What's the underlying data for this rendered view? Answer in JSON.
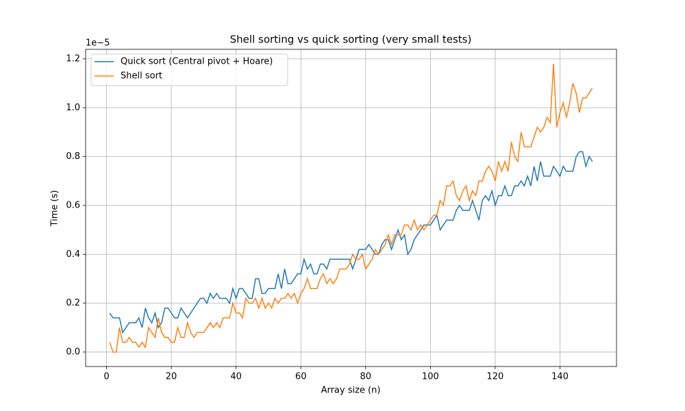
{
  "chart_data": {
    "type": "line",
    "title": "Shell sorting vs quick sorting (very small tests)",
    "x_label": "Array size (n)",
    "y_label": "Time (s)",
    "y_offset": "1e−5",
    "x": [
      1,
      2,
      3,
      4,
      5,
      6,
      7,
      8,
      9,
      10,
      11,
      12,
      13,
      14,
      15,
      16,
      17,
      18,
      19,
      20,
      21,
      22,
      23,
      24,
      25,
      26,
      27,
      28,
      29,
      30,
      31,
      32,
      33,
      34,
      35,
      36,
      37,
      38,
      39,
      40,
      41,
      42,
      43,
      44,
      45,
      46,
      47,
      48,
      49,
      50,
      51,
      52,
      53,
      54,
      55,
      56,
      57,
      58,
      59,
      60,
      61,
      62,
      63,
      64,
      65,
      66,
      67,
      68,
      69,
      70,
      71,
      72,
      73,
      74,
      75,
      76,
      77,
      78,
      79,
      80,
      81,
      82,
      83,
      84,
      85,
      86,
      87,
      88,
      89,
      90,
      91,
      92,
      93,
      94,
      95,
      96,
      97,
      98,
      99,
      100,
      101,
      102,
      103,
      104,
      105,
      106,
      107,
      108,
      109,
      110,
      111,
      112,
      113,
      114,
      115,
      116,
      117,
      118,
      119,
      120,
      121,
      122,
      123,
      124,
      125,
      126,
      127,
      128,
      129,
      130,
      131,
      132,
      133,
      134,
      135,
      136,
      137,
      138,
      139,
      140,
      141,
      142,
      143,
      144,
      145,
      146,
      147,
      148,
      149,
      150
    ],
    "series": [
      {
        "name": "Quick sort (Central pivot + Hoare)",
        "color": "#1f77b4",
        "values": [
          0.16,
          0.14,
          0.14,
          0.14,
          0.08,
          0.1,
          0.12,
          0.12,
          0.12,
          0.14,
          0.1,
          0.18,
          0.14,
          0.12,
          0.16,
          0.1,
          0.12,
          0.18,
          0.18,
          0.16,
          0.14,
          0.14,
          0.18,
          0.16,
          0.14,
          0.16,
          0.18,
          0.2,
          0.22,
          0.22,
          0.2,
          0.24,
          0.22,
          0.24,
          0.22,
          0.22,
          0.22,
          0.2,
          0.26,
          0.22,
          0.26,
          0.26,
          0.24,
          0.22,
          0.22,
          0.3,
          0.3,
          0.24,
          0.24,
          0.26,
          0.26,
          0.26,
          0.32,
          0.26,
          0.34,
          0.28,
          0.28,
          0.3,
          0.32,
          0.32,
          0.38,
          0.34,
          0.36,
          0.32,
          0.32,
          0.36,
          0.36,
          0.34,
          0.38,
          0.38,
          0.38,
          0.38,
          0.38,
          0.38,
          0.38,
          0.34,
          0.38,
          0.42,
          0.42,
          0.42,
          0.44,
          0.42,
          0.4,
          0.4,
          0.44,
          0.46,
          0.46,
          0.42,
          0.46,
          0.5,
          0.46,
          0.48,
          0.4,
          0.42,
          0.46,
          0.48,
          0.5,
          0.52,
          0.52,
          0.52,
          0.54,
          0.56,
          0.5,
          0.52,
          0.54,
          0.54,
          0.54,
          0.58,
          0.6,
          0.58,
          0.58,
          0.58,
          0.62,
          0.58,
          0.54,
          0.62,
          0.64,
          0.62,
          0.66,
          0.6,
          0.64,
          0.64,
          0.68,
          0.64,
          0.64,
          0.68,
          0.68,
          0.7,
          0.68,
          0.72,
          0.68,
          0.76,
          0.7,
          0.78,
          0.72,
          0.72,
          0.72,
          0.76,
          0.74,
          0.72,
          0.76,
          0.74,
          0.74,
          0.74,
          0.8,
          0.82,
          0.82,
          0.76,
          0.8,
          0.78
        ]
      },
      {
        "name": "Shell sort",
        "color": "#ff7f0e",
        "values": [
          0.04,
          0,
          0,
          0.1,
          0.04,
          0.04,
          0.06,
          0.04,
          0.04,
          0.02,
          0.04,
          0.02,
          0.1,
          0.08,
          0.06,
          0.14,
          0.08,
          0.06,
          0.06,
          0.04,
          0.04,
          0.1,
          0.06,
          0.06,
          0.12,
          0.08,
          0.06,
          0.08,
          0.08,
          0.08,
          0.1,
          0.12,
          0.1,
          0.12,
          0.1,
          0.14,
          0.14,
          0.14,
          0.2,
          0.16,
          0.16,
          0.14,
          0.22,
          0.2,
          0.2,
          0.22,
          0.18,
          0.22,
          0.18,
          0.2,
          0.18,
          0.22,
          0.2,
          0.22,
          0.22,
          0.24,
          0.22,
          0.24,
          0.2,
          0.24,
          0.26,
          0.3,
          0.26,
          0.26,
          0.26,
          0.3,
          0.32,
          0.28,
          0.3,
          0.28,
          0.3,
          0.34,
          0.34,
          0.34,
          0.36,
          0.4,
          0.38,
          0.38,
          0.4,
          0.34,
          0.36,
          0.38,
          0.42,
          0.4,
          0.42,
          0.44,
          0.48,
          0.44,
          0.48,
          0.48,
          0.48,
          0.52,
          0.52,
          0.5,
          0.54,
          0.5,
          0.52,
          0.5,
          0.52,
          0.54,
          0.56,
          0.56,
          0.62,
          0.6,
          0.68,
          0.68,
          0.7,
          0.64,
          0.62,
          0.66,
          0.68,
          0.62,
          0.66,
          0.64,
          0.7,
          0.7,
          0.74,
          0.76,
          0.74,
          0.7,
          0.78,
          0.74,
          0.78,
          0.74,
          0.86,
          0.8,
          0.78,
          0.9,
          0.84,
          0.84,
          0.84,
          0.88,
          0.92,
          0.9,
          0.92,
          0.96,
          0.94,
          1.18,
          0.92,
          0.98,
          1.02,
          0.96,
          1.02,
          1.1,
          1.06,
          0.98,
          1.04,
          1.04,
          1.06,
          1.08
        ]
      }
    ],
    "xlim": [
      -6.45,
      157.45
    ],
    "ylim": [
      -0.059,
      1.239
    ],
    "xticks": [
      0,
      20,
      40,
      60,
      80,
      100,
      120,
      140
    ],
    "yticks": [
      {
        "value": 0,
        "label": "0.0"
      },
      0.2,
      0.4,
      0.6,
      0.8,
      {
        "value": 1,
        "label": "1.0"
      },
      1.2
    ],
    "grid": true,
    "legend": "upper-left"
  }
}
